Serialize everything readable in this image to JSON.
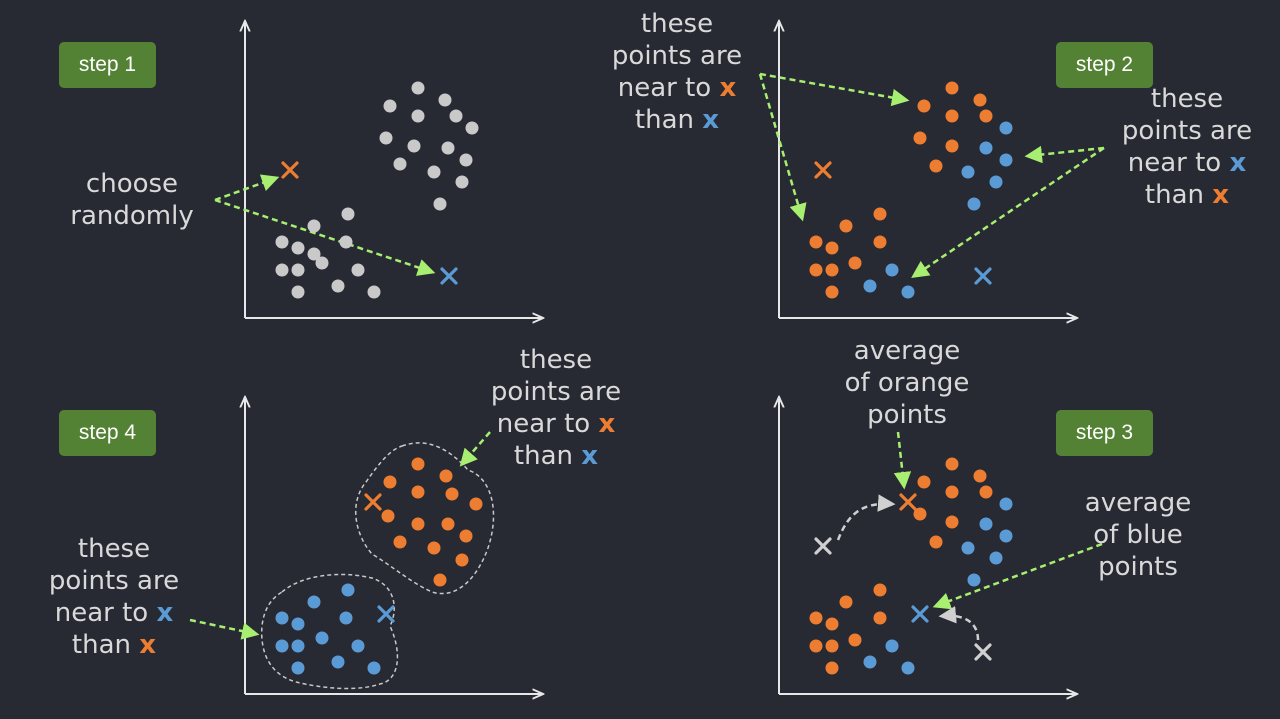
{
  "colors": {
    "background": "#272a33",
    "badge": "#548235",
    "axis": "#e8e8e8",
    "text": "#d9d9d9",
    "gray_point": "#c9c9c9",
    "orange": "#ed7d31",
    "blue": "#5b9bd5",
    "arrow": "#a8ef71",
    "outline": "#c8c8c8"
  },
  "steps": {
    "step1": "step 1",
    "step2": "step 2",
    "step3": "step 3",
    "step4": "step 4"
  },
  "captions": {
    "choose_randomly": {
      "line1": "choose",
      "line2": "randomly"
    },
    "step2_top": {
      "line1": "these",
      "line2": "points are",
      "line3_text": "near to",
      "line3_mark": "x",
      "line4_text": "than",
      "line4_mark": "x"
    },
    "step2_right": {
      "line1": "these",
      "line2": "points are",
      "line3_text": "near to",
      "line3_mark": "x",
      "line4_text": "than",
      "line4_mark": "x"
    },
    "step4_top": {
      "line1": "these",
      "line2": "points are",
      "line3_text": "near to",
      "line3_mark": "x",
      "line4_text": "than",
      "line4_mark": "x"
    },
    "step4_left": {
      "line1": "these",
      "line2": "points are",
      "line3_text": "near to",
      "line3_mark": "x",
      "line4_text": "than",
      "line4_mark": "x"
    },
    "avg_orange": {
      "line1": "average",
      "line2": "of orange",
      "line3": "points"
    },
    "avg_blue": {
      "line1": "average",
      "line2": "of blue",
      "line3": "points"
    }
  }
}
